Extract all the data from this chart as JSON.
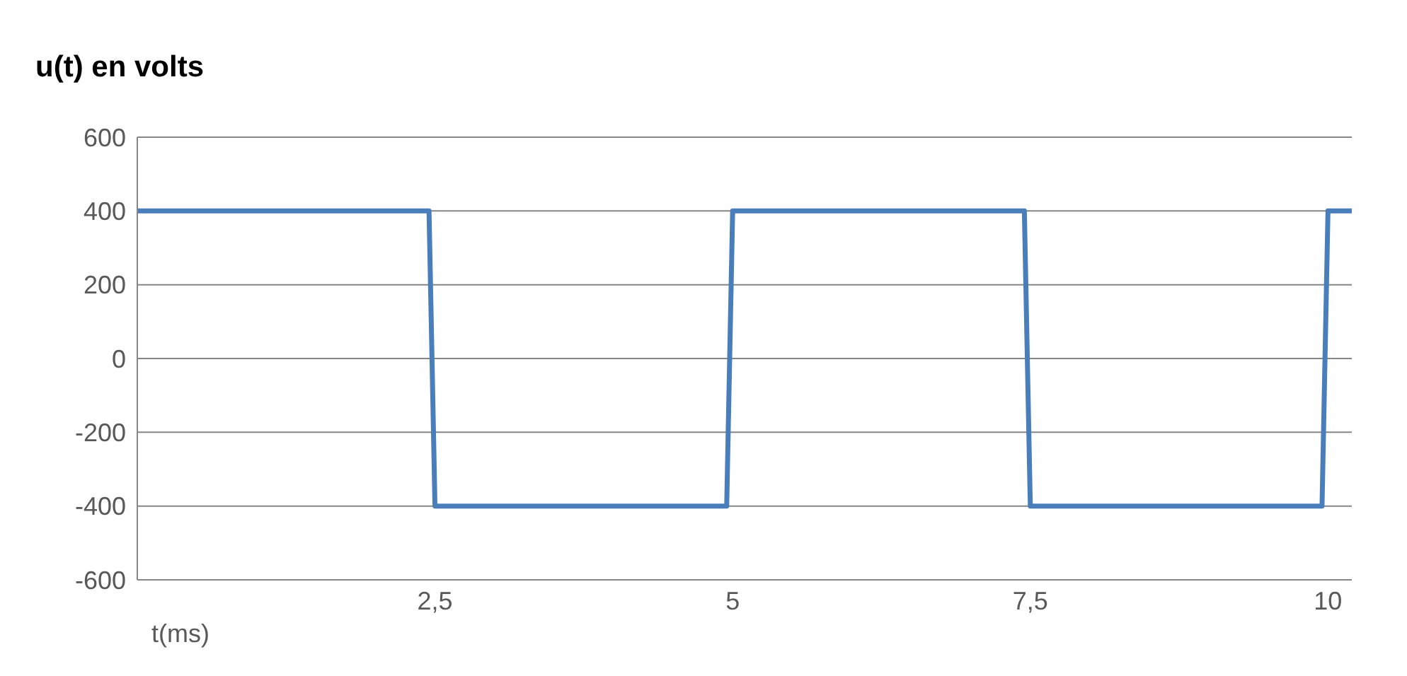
{
  "chart_data": {
    "type": "line",
    "ylabel": "u(t) en volts",
    "xlabel": "t(ms)",
    "x": [
      0,
      2.45,
      2.5,
      4.95,
      5,
      7.45,
      7.5,
      9.95,
      10,
      10.2
    ],
    "series": [
      {
        "color": "#4a7ebb",
        "values": [
          400,
          400,
          -400,
          -400,
          400,
          400,
          -400,
          -400,
          400,
          400
        ]
      }
    ],
    "xlim": [
      0,
      10.2
    ],
    "xticks": [
      {
        "value": 2.5,
        "label": "2,5"
      },
      5,
      {
        "value": 7.5,
        "label": "7,5"
      },
      10
    ],
    "ylim": [
      -600,
      600
    ],
    "yticks": [
      -600,
      -400,
      -200,
      0,
      200,
      400,
      600
    ],
    "grid": "y",
    "legend": false,
    "marker": "none",
    "line_style": "solid"
  }
}
